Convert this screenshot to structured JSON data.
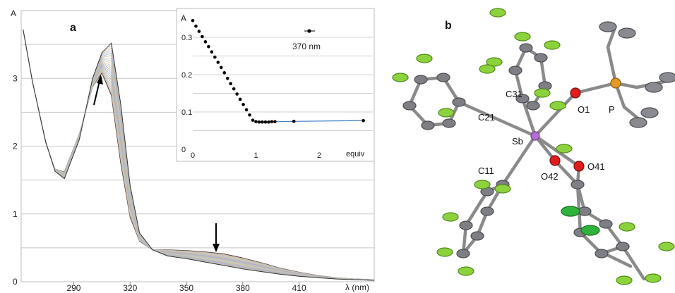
{
  "panel_a": {
    "label": "a",
    "y_axis_label": "A",
    "x_axis_label": "λ (nm)",
    "x_ticks": [
      "290",
      "320",
      "350",
      "380",
      "410"
    ],
    "y_ticks": [
      "0",
      "1",
      "2",
      "3"
    ]
  },
  "inset": {
    "y_axis_label": "A",
    "x_axis_label": "equiv",
    "legend_label": "370 nm",
    "x_ticks": [
      "0",
      "1",
      "2"
    ],
    "y_ticks": [
      "0",
      "0.1",
      "0.2",
      "0.3"
    ]
  },
  "panel_b": {
    "label": "b",
    "atom_labels": [
      "C31",
      "O1",
      "P",
      "C21",
      "Sb",
      "O41",
      "O42",
      "C11"
    ]
  },
  "chart_data": [
    {
      "type": "line",
      "xlabel": "λ (nm)",
      "ylabel": "A",
      "xlim": [
        262,
        450
      ],
      "ylim": [
        0,
        4
      ],
      "grid": true,
      "description_series": "Titration spectra (about 20 overlaid traces); absorbance increases near 305 nm and decreases near 370 nm",
      "series": [
        {
          "x": [
            263,
            268,
            275,
            280,
            285,
            293,
            300,
            305,
            310,
            315,
            320,
            325,
            332,
            340,
            350,
            360,
            370,
            380,
            390,
            400,
            410,
            420,
            430,
            440,
            450
          ],
          "y": [
            3.72,
            2.95,
            2.05,
            1.66,
            1.62,
            2.18,
            2.88,
            3.08,
            2.75,
            1.75,
            0.95,
            0.6,
            0.47,
            0.47,
            0.46,
            0.44,
            0.41,
            0.35,
            0.28,
            0.2,
            0.14,
            0.09,
            0.06,
            0.04,
            0.03
          ]
        },
        {
          "x": [
            263,
            268,
            275,
            280,
            285,
            293,
            300,
            305,
            310,
            315,
            320,
            325,
            332,
            340,
            350,
            360,
            370,
            380,
            390,
            400,
            410,
            420,
            430,
            440,
            450
          ],
          "y": [
            3.72,
            2.95,
            2.07,
            1.63,
            1.52,
            2.1,
            3.0,
            3.38,
            3.52,
            2.62,
            1.42,
            0.72,
            0.47,
            0.38,
            0.34,
            0.29,
            0.24,
            0.19,
            0.15,
            0.11,
            0.08,
            0.06,
            0.04,
            0.03,
            0.02
          ]
        }
      ],
      "annotations": [
        "arrow up at ~303 nm",
        "arrow down at ~367 nm"
      ]
    },
    {
      "type": "scatter",
      "xlabel": "equiv",
      "ylabel": "A",
      "xlim": [
        0,
        2.8
      ],
      "ylim": [
        0,
        0.35
      ],
      "grid": true,
      "legend": "370 nm",
      "x": [
        0,
        0.05,
        0.1,
        0.15,
        0.2,
        0.25,
        0.3,
        0.35,
        0.4,
        0.45,
        0.5,
        0.55,
        0.6,
        0.65,
        0.7,
        0.75,
        0.8,
        0.85,
        0.9,
        0.95,
        1.0,
        1.05,
        1.1,
        1.15,
        1.2,
        1.25,
        1.3,
        1.6,
        2.7
      ],
      "y": [
        0.345,
        0.33,
        0.316,
        0.302,
        0.288,
        0.275,
        0.261,
        0.247,
        0.233,
        0.219,
        0.205,
        0.19,
        0.176,
        0.162,
        0.148,
        0.134,
        0.12,
        0.106,
        0.092,
        0.078,
        0.074,
        0.073,
        0.073,
        0.073,
        0.073,
        0.074,
        0.074,
        0.075,
        0.077
      ]
    }
  ]
}
